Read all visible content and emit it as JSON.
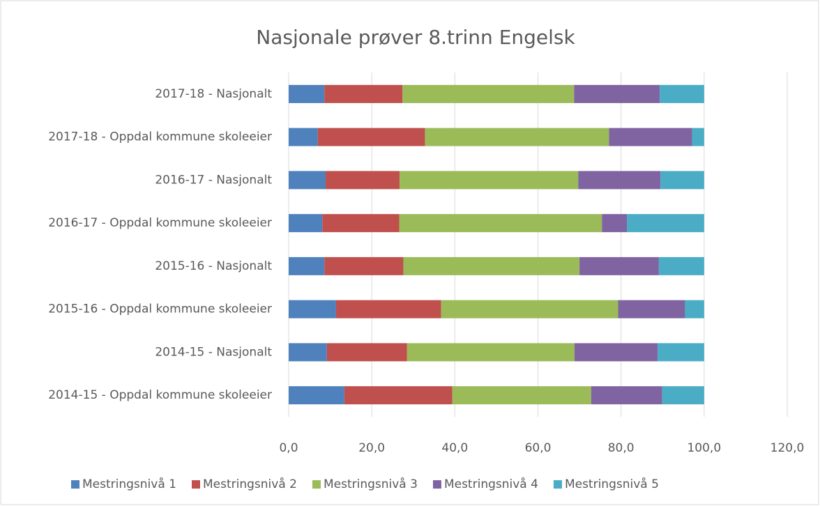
{
  "chart_data": {
    "type": "stacked_barh",
    "title": "Nasjonale prøver 8.trinn Engelsk",
    "categories": [
      "2017-18 - Nasjonalt",
      "2017-18 - Oppdal kommune skoleeier",
      "2016-17 - Nasjonalt",
      "2016-17 - Oppdal kommune skoleeier",
      "2015-16 - Nasjonalt",
      "2015-16 - Oppdal kommune skoleeier",
      "2014-15 - Nasjonalt",
      "2014-15 - Oppdal kommune skoleeier"
    ],
    "series": [
      {
        "name": "Mestringsnivå 1",
        "color": "#4f81bd",
        "values": [
          8.6,
          7.0,
          8.9,
          8.1,
          8.6,
          11.4,
          9.2,
          13.4
        ]
      },
      {
        "name": "Mestringsnivå 2",
        "color": "#c0504d",
        "values": [
          18.8,
          25.8,
          17.8,
          18.5,
          19.0,
          25.3,
          19.3,
          26.0
        ]
      },
      {
        "name": "Mestringsnivå 3",
        "color": "#9bbb59",
        "values": [
          41.3,
          44.3,
          43.0,
          48.8,
          42.4,
          42.6,
          40.3,
          33.4
        ]
      },
      {
        "name": "Mestringsnivå 4",
        "color": "#8064a2",
        "values": [
          20.6,
          20.0,
          19.8,
          6.0,
          19.1,
          16.1,
          20.0,
          17.1
        ]
      },
      {
        "name": "Mestringsnivå 5",
        "color": "#4bacc6",
        "values": [
          10.7,
          2.9,
          10.5,
          18.6,
          10.9,
          4.6,
          11.2,
          10.1
        ]
      }
    ],
    "xlim": [
      0,
      120
    ],
    "xticks": [
      {
        "value": 0,
        "label": "0,0"
      },
      {
        "value": 20,
        "label": "20,0"
      },
      {
        "value": 40,
        "label": "40,0"
      },
      {
        "value": 60,
        "label": "60,0"
      },
      {
        "value": 80,
        "label": "80,0"
      },
      {
        "value": 100,
        "label": "100,0"
      },
      {
        "value": 120,
        "label": "120,0"
      }
    ],
    "grid": true,
    "legend": "bottom"
  }
}
